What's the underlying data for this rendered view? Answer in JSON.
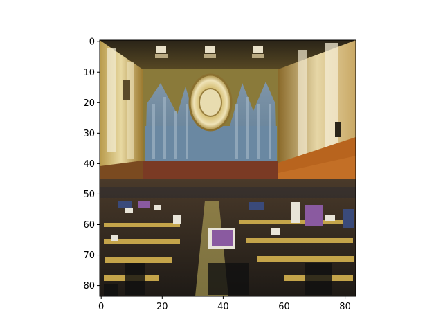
{
  "chart_data": {
    "type": "image",
    "title": "",
    "xlabel": "",
    "ylabel": "",
    "x_ticks": [
      0,
      20,
      40,
      60,
      80
    ],
    "y_ticks": [
      0,
      10,
      20,
      30,
      40,
      50,
      60,
      70,
      80
    ],
    "xlim": [
      -0.5,
      83.5
    ],
    "ylim": [
      83.5,
      -0.5
    ],
    "image_size": [
      84,
      84
    ],
    "image_content": "pixelated photograph of a library reading hall with organ pipes, a circular emblem and rows of desks",
    "grid": false
  }
}
